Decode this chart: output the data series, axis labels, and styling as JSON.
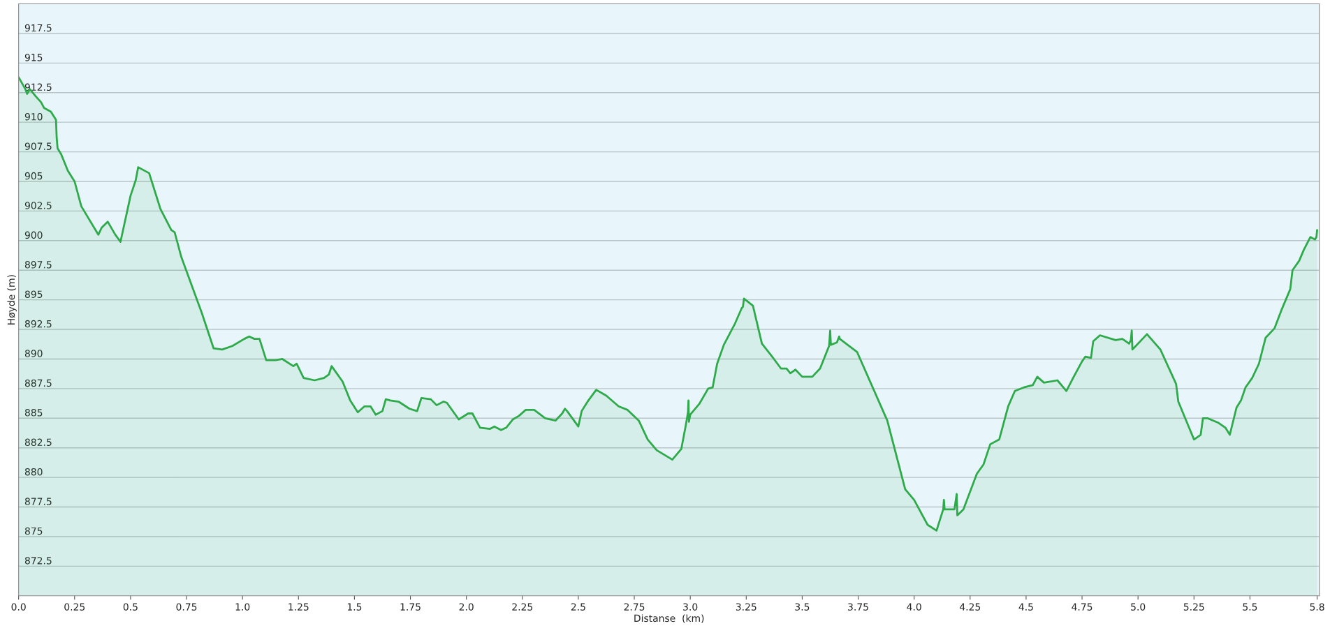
{
  "chart_data": {
    "type": "area",
    "xlabel": "Distanse  (km)",
    "ylabel": "Høyde (m)",
    "xlim": [
      0,
      5.81
    ],
    "ylim": [
      870,
      920
    ],
    "xticks": [
      {
        "value": 0,
        "label": "0.0"
      },
      0.25,
      0.5,
      0.75,
      {
        "value": 1,
        "label": "1.0"
      },
      1.25,
      1.5,
      1.75,
      {
        "value": 2,
        "label": "2.0"
      },
      2.25,
      2.5,
      2.75,
      {
        "value": 3,
        "label": "3.0"
      },
      3.25,
      3.5,
      3.75,
      {
        "value": 4,
        "label": "4.0"
      },
      4.25,
      4.5,
      4.75,
      {
        "value": 5,
        "label": "5.0"
      },
      5.25,
      5.5,
      5.8
    ],
    "yticks": [
      872.5,
      875,
      877.5,
      880,
      882.5,
      885,
      887.5,
      890,
      892.5,
      895,
      897.5,
      900,
      902.5,
      905,
      907.5,
      910,
      912.5,
      915,
      917.5
    ],
    "grid": "y",
    "legend": false,
    "series": [
      {
        "color": "#2eaa4a",
        "x": [
          0,
          0.03,
          0.038,
          0.05,
          0.076,
          0.1,
          0.114,
          0.144,
          0.167,
          0.17,
          0.174,
          0.19,
          0.22,
          0.25,
          0.28,
          0.356,
          0.371,
          0.398,
          0.432,
          0.455,
          0.5,
          0.523,
          0.534,
          0.583,
          0.633,
          0.682,
          0.697,
          0.727,
          0.818,
          0.871,
          0.909,
          0.955,
          1.008,
          1.03,
          1.053,
          1.076,
          1.106,
          1.148,
          1.178,
          1.227,
          1.242,
          1.273,
          1.322,
          1.364,
          1.386,
          1.398,
          1.447,
          1.481,
          1.515,
          1.545,
          1.572,
          1.595,
          1.625,
          1.64,
          1.66,
          1.697,
          1.746,
          1.78,
          1.799,
          1.841,
          1.867,
          1.898,
          1.913,
          1.966,
          2.008,
          2.027,
          2.061,
          2.106,
          2.125,
          2.155,
          2.178,
          2.208,
          2.235,
          2.265,
          2.303,
          2.352,
          2.398,
          2.428,
          2.44,
          2.45,
          2.5,
          2.515,
          2.545,
          2.58,
          2.625,
          2.68,
          2.72,
          2.77,
          2.81,
          2.85,
          2.92,
          2.96,
          2.98,
          2.99,
          2.992,
          2.994,
          3.0,
          3.04,
          3.08,
          3.1,
          3.12,
          3.15,
          3.2,
          3.23,
          3.235,
          3.24,
          3.28,
          3.32,
          3.37,
          3.405,
          3.43,
          3.447,
          3.47,
          3.5,
          3.545,
          3.58,
          3.62,
          3.625,
          3.628,
          3.655,
          3.665,
          3.668,
          3.745,
          3.88,
          3.96,
          4.0,
          4.06,
          4.1,
          4.13,
          4.133,
          4.136,
          4.18,
          4.19,
          4.193,
          4.22,
          4.28,
          4.31,
          4.34,
          4.38,
          4.42,
          4.45,
          4.49,
          4.53,
          4.55,
          4.58,
          4.64,
          4.68,
          4.71,
          4.75,
          4.765,
          4.79,
          4.8,
          4.83,
          4.9,
          4.93,
          4.96,
          4.968,
          4.972,
          4.975,
          4.985,
          5.04,
          5.1,
          5.17,
          5.18,
          5.25,
          5.28,
          5.29,
          5.31,
          5.36,
          5.39,
          5.41,
          5.44,
          5.46,
          5.48,
          5.51,
          5.54,
          5.57,
          5.61,
          5.64,
          5.68,
          5.69,
          5.72,
          5.74,
          5.77,
          5.79,
          5.797,
          5.8
        ],
        "values": [
          913.8,
          912.8,
          912.4,
          912.8,
          912.2,
          911.7,
          911.2,
          910.9,
          910.2,
          908.7,
          907.8,
          907.3,
          905.9,
          905,
          902.9,
          900.5,
          901.1,
          901.6,
          900.5,
          899.9,
          903.8,
          905.1,
          906.2,
          905.7,
          902.7,
          900.9,
          900.7,
          898.6,
          893.9,
          890.9,
          890.8,
          891.1,
          891.7,
          891.9,
          891.7,
          891.7,
          889.9,
          889.9,
          890,
          889.4,
          889.6,
          888.4,
          888.2,
          888.4,
          888.7,
          889.4,
          888.1,
          886.5,
          885.5,
          886,
          886,
          885.3,
          885.6,
          886.6,
          886.5,
          886.4,
          885.8,
          885.6,
          886.7,
          886.6,
          886.1,
          886.4,
          886.3,
          884.9,
          885.4,
          885.4,
          884.2,
          884.1,
          884.3,
          884,
          884.2,
          884.9,
          885.2,
          885.7,
          885.7,
          885,
          884.8,
          885.4,
          885.8,
          885.6,
          884.3,
          885.6,
          886.5,
          887.4,
          886.9,
          886,
          885.7,
          884.8,
          883.2,
          882.3,
          881.5,
          882.4,
          884.4,
          885.5,
          886.5,
          884.7,
          885.3,
          886.2,
          887.5,
          887.6,
          889.6,
          891.2,
          893,
          894.3,
          894.4,
          895.1,
          894.5,
          891.3,
          890.1,
          889.2,
          889.2,
          888.8,
          889.1,
          888.5,
          888.5,
          889.2,
          891.1,
          892.4,
          891.2,
          891.4,
          891.9,
          891.7,
          890.6,
          884.8,
          879,
          878.1,
          876,
          875.5,
          877.3,
          878.1,
          877.3,
          877.3,
          878.6,
          876.8,
          877.3,
          880.3,
          881.1,
          882.8,
          883.2,
          886,
          887.3,
          887.6,
          887.8,
          888.5,
          888,
          888.2,
          887.3,
          888.4,
          889.8,
          890.2,
          890.1,
          891.5,
          892,
          891.6,
          891.7,
          891.3,
          891.6,
          892.4,
          890.8,
          891,
          892.1,
          890.8,
          887.9,
          886.4,
          883.2,
          883.6,
          885,
          885,
          884.6,
          884.2,
          883.6,
          885.9,
          886.5,
          887.6,
          888.4,
          889.6,
          891.8,
          892.6,
          894.1,
          895.9,
          897.5,
          898.3,
          899.2,
          900.3,
          900.1,
          900.3,
          900.9
        ]
      }
    ]
  }
}
